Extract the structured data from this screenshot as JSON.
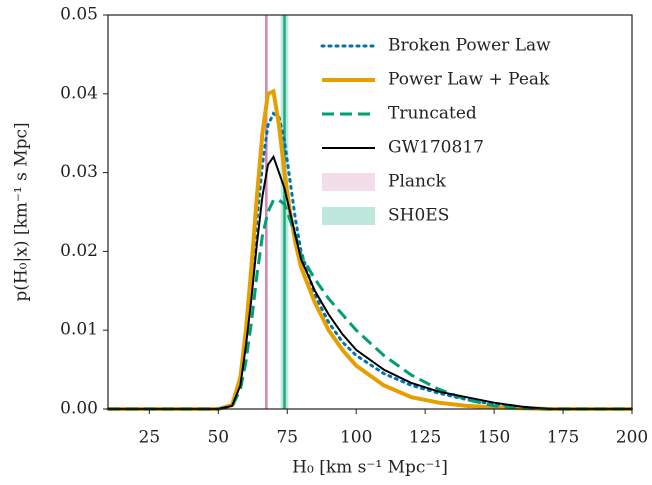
{
  "chart_data": {
    "type": "line",
    "xlabel": "H₀ [km s⁻¹ Mpc⁻¹]",
    "ylabel": "p(H₀|x) [km⁻¹ s Mpc]",
    "xlim": [
      10,
      200
    ],
    "ylim": [
      0,
      0.05
    ],
    "xticks": [
      25,
      50,
      75,
      100,
      125,
      150,
      175,
      200
    ],
    "yticks": [
      {
        "value": 0,
        "label": "0.00"
      },
      {
        "value": 0.01,
        "label": "0.01"
      },
      {
        "value": 0.02,
        "label": "0.02"
      },
      {
        "value": 0.03,
        "label": "0.03"
      },
      {
        "value": 0.04,
        "label": "0.04"
      },
      {
        "value": 0.05,
        "label": "0.05"
      }
    ],
    "legend": "upper right",
    "x": [
      10,
      40,
      50,
      55,
      58,
      60,
      62,
      64,
      66,
      68,
      70,
      72,
      74,
      76,
      78,
      80,
      85,
      90,
      95,
      100,
      110,
      120,
      130,
      140,
      150,
      160,
      170,
      200
    ],
    "series": [
      {
        "name": "Broken Power Law",
        "color": "#0072b2",
        "style": "dotted",
        "values": [
          0,
          0,
          0,
          0.0005,
          0.004,
          0.009,
          0.016,
          0.024,
          0.031,
          0.036,
          0.0375,
          0.037,
          0.034,
          0.029,
          0.024,
          0.02,
          0.0145,
          0.011,
          0.0085,
          0.0068,
          0.0045,
          0.003,
          0.002,
          0.0012,
          0.0006,
          0.0002,
          0,
          0
        ]
      },
      {
        "name": "Power Law + Peak",
        "color": "#e69f00",
        "style": "solid-thick",
        "values": [
          0,
          0,
          0,
          0.0005,
          0.004,
          0.01,
          0.018,
          0.027,
          0.035,
          0.04,
          0.0403,
          0.036,
          0.03,
          0.025,
          0.021,
          0.018,
          0.0135,
          0.01,
          0.0075,
          0.0055,
          0.003,
          0.0015,
          0.0008,
          0.0004,
          0.0002,
          0.0001,
          0,
          0
        ]
      },
      {
        "name": "Truncated",
        "color": "#009e73",
        "style": "dashed",
        "values": [
          0,
          0,
          0,
          0.0003,
          0.0025,
          0.006,
          0.011,
          0.017,
          0.022,
          0.025,
          0.0265,
          0.0265,
          0.026,
          0.024,
          0.022,
          0.0195,
          0.0165,
          0.014,
          0.012,
          0.01,
          0.0068,
          0.0043,
          0.0025,
          0.0012,
          0.0004,
          0.0001,
          0,
          0
        ]
      },
      {
        "name": "GW170817",
        "color": "#000000",
        "style": "solid",
        "values": [
          0,
          0,
          0,
          0.0004,
          0.003,
          0.008,
          0.014,
          0.021,
          0.027,
          0.031,
          0.032,
          0.03,
          0.028,
          0.025,
          0.022,
          0.019,
          0.015,
          0.012,
          0.0095,
          0.0075,
          0.005,
          0.0033,
          0.0022,
          0.0015,
          0.0008,
          0.0003,
          0,
          0
        ]
      }
    ],
    "bands": [
      {
        "name": "Planck",
        "color": "#cc79a7",
        "center": 67.4,
        "low": 66.9,
        "high": 67.9
      },
      {
        "name": "SH0ES",
        "color": "#009e73",
        "center": 74.0,
        "low": 72.6,
        "high": 75.4
      }
    ]
  }
}
